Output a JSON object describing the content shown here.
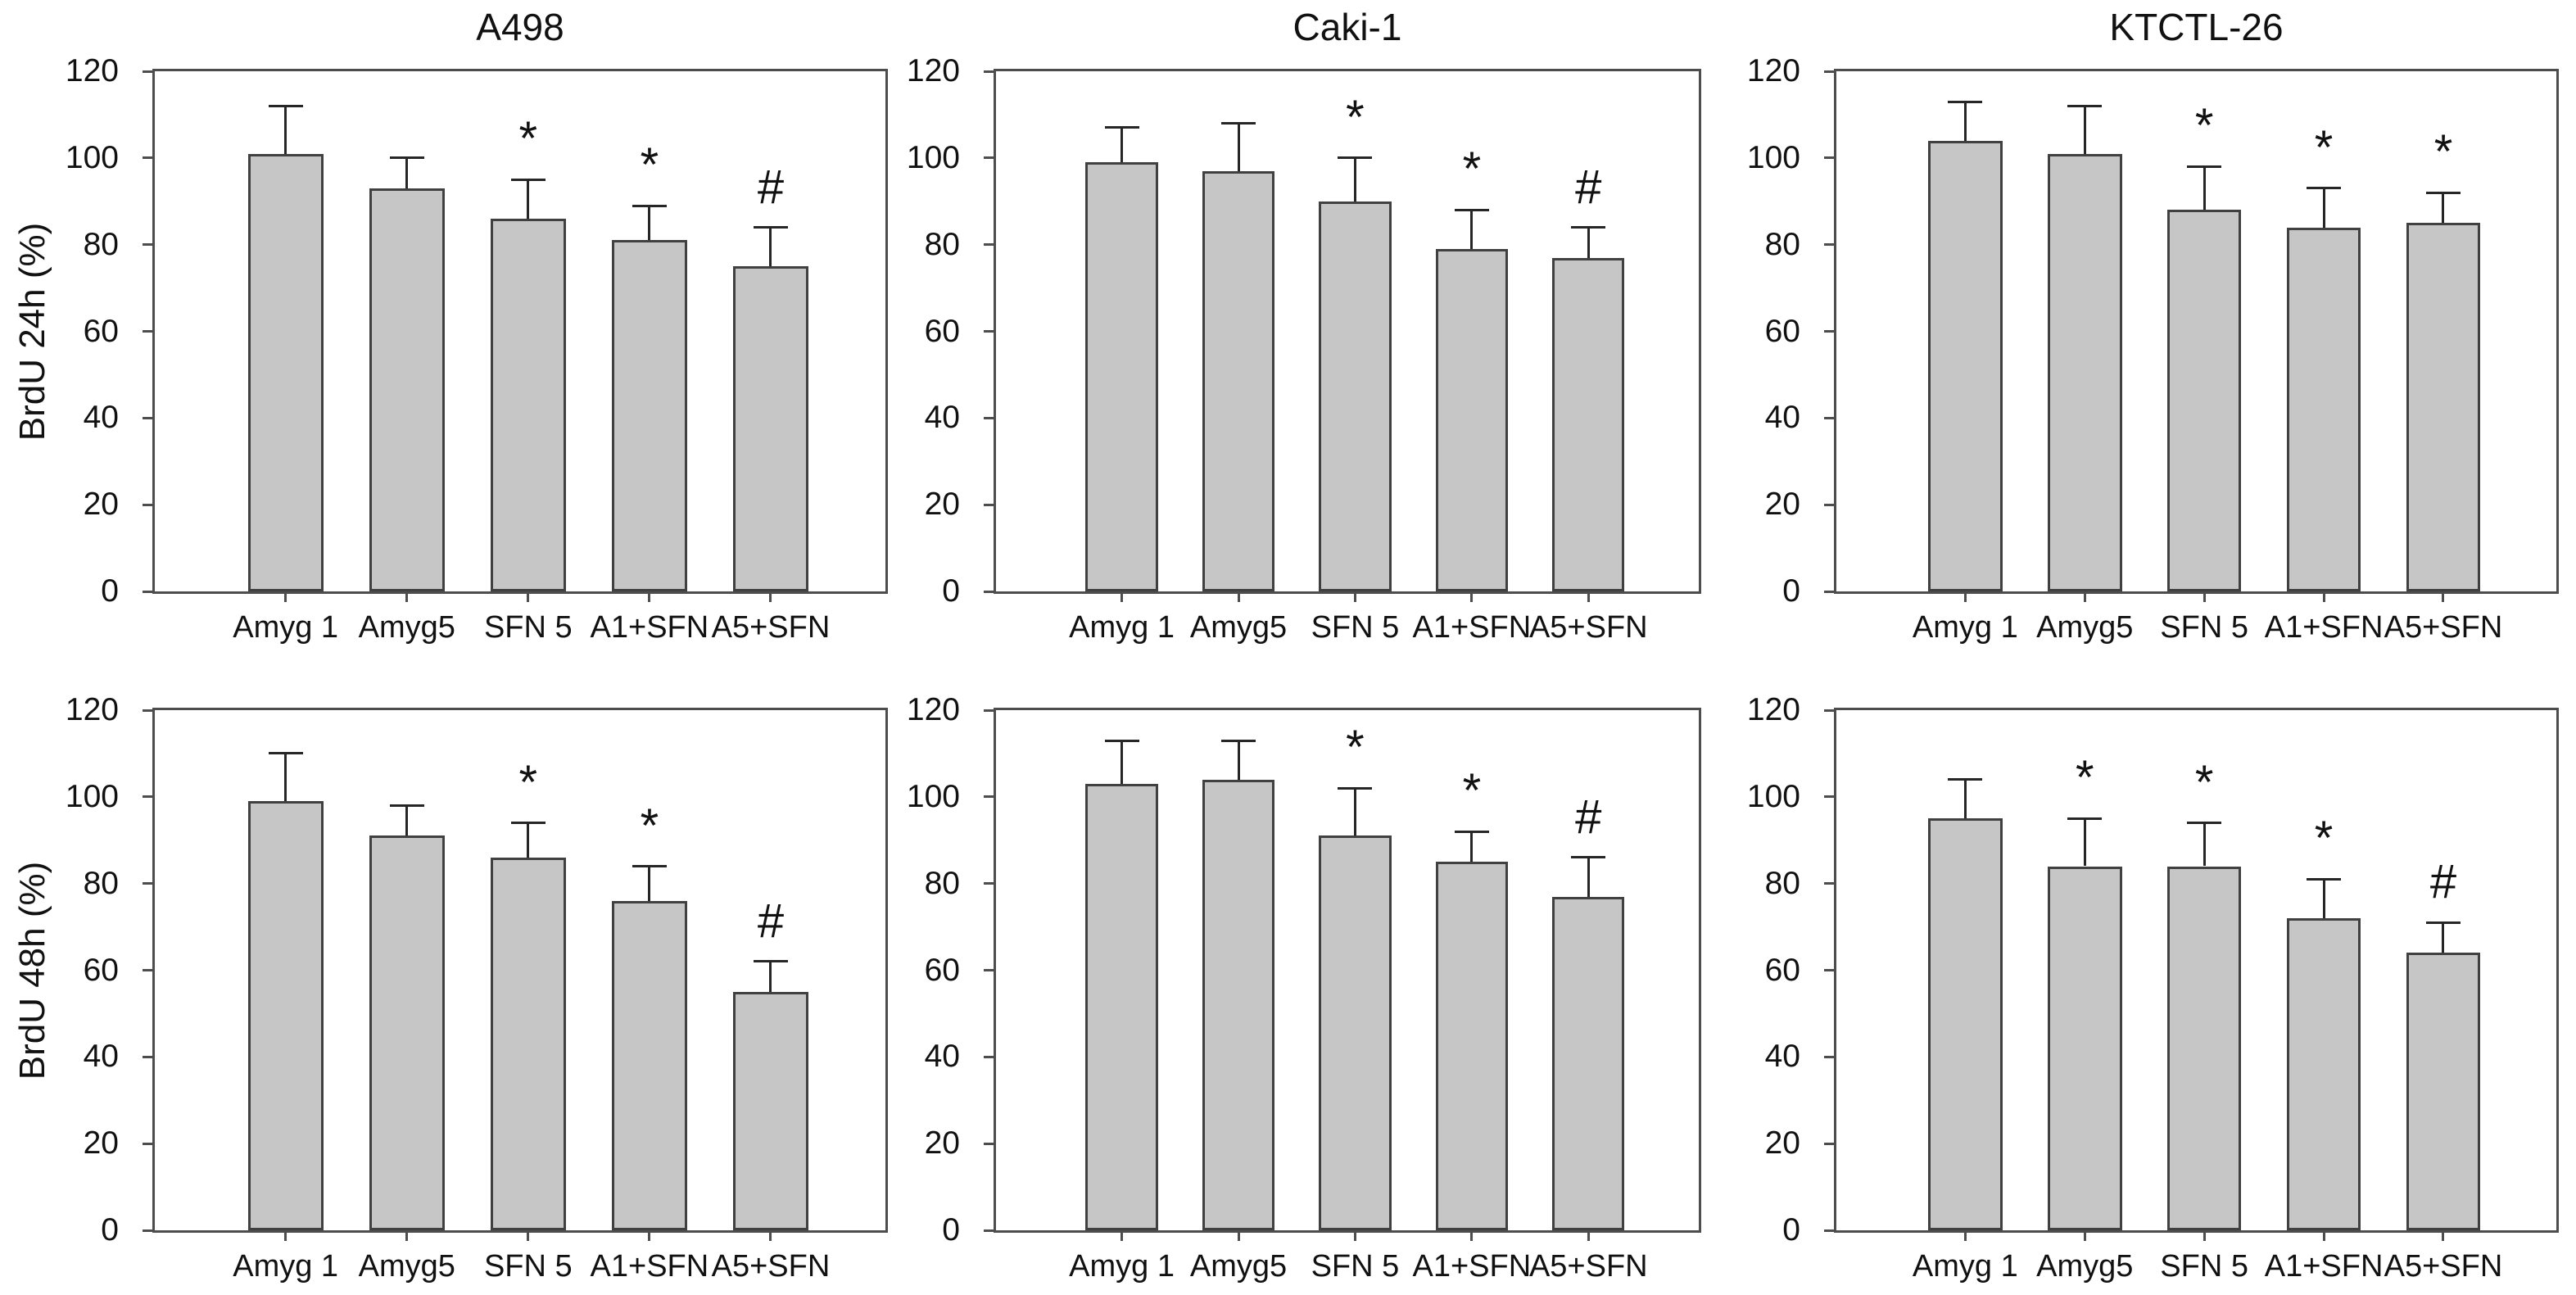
{
  "figure": {
    "column_titles": [
      "A498",
      "Caki-1",
      "KTCTL-26"
    ],
    "row_labels": [
      "BrdU 24h (%)",
      "BrdU 48h (%)"
    ],
    "significance_symbols": [
      "*",
      "#"
    ]
  },
  "colors": {
    "bar_fill": "#c6c6c6",
    "bar_border": "#404040",
    "axis": "#4d4d4d",
    "error_bar": "#262626",
    "text": "#111111",
    "background": "#ffffff"
  },
  "chart_data": [
    {
      "type": "bar",
      "title": "A498",
      "ylabel": "BrdU 24h (%)",
      "xlabel": "",
      "categories": [
        "Amyg 1",
        "Amyg5",
        "SFN 5",
        "A1+SFN",
        "A5+SFN"
      ],
      "values": [
        101,
        93,
        86,
        81,
        75
      ],
      "errors": [
        11,
        7,
        9,
        8,
        9
      ],
      "annotations": [
        "",
        "",
        "*",
        "*",
        "#"
      ],
      "ylim": [
        0,
        120
      ],
      "yticks": [
        0,
        20,
        40,
        60,
        80,
        100,
        120
      ],
      "grid": false,
      "legend": false
    },
    {
      "type": "bar",
      "title": "Caki-1",
      "ylabel": "BrdU 24h (%)",
      "xlabel": "",
      "categories": [
        "Amyg 1",
        "Amyg5",
        "SFN 5",
        "A1+SFN",
        "A5+SFN"
      ],
      "values": [
        99,
        97,
        90,
        79,
        77
      ],
      "errors": [
        8,
        11,
        10,
        9,
        7
      ],
      "annotations": [
        "",
        "",
        "*",
        "*",
        "#"
      ],
      "ylim": [
        0,
        120
      ],
      "yticks": [
        0,
        20,
        40,
        60,
        80,
        100,
        120
      ],
      "grid": false,
      "legend": false
    },
    {
      "type": "bar",
      "title": "KTCTL-26",
      "ylabel": "BrdU 24h (%)",
      "xlabel": "",
      "categories": [
        "Amyg 1",
        "Amyg5",
        "SFN 5",
        "A1+SFN",
        "A5+SFN"
      ],
      "values": [
        104,
        101,
        88,
        84,
        85
      ],
      "errors": [
        9,
        11,
        10,
        9,
        7
      ],
      "annotations": [
        "",
        "",
        "*",
        "*",
        "*"
      ],
      "ylim": [
        0,
        120
      ],
      "yticks": [
        0,
        20,
        40,
        60,
        80,
        100,
        120
      ],
      "grid": false,
      "legend": false
    },
    {
      "type": "bar",
      "title": "A498",
      "ylabel": "BrdU 48h (%)",
      "xlabel": "",
      "categories": [
        "Amyg 1",
        "Amyg5",
        "SFN 5",
        "A1+SFN",
        "A5+SFN"
      ],
      "values": [
        99,
        91,
        86,
        76,
        55
      ],
      "errors": [
        11,
        7,
        8,
        8,
        7
      ],
      "annotations": [
        "",
        "",
        "*",
        "*",
        "#"
      ],
      "ylim": [
        0,
        120
      ],
      "yticks": [
        0,
        20,
        40,
        60,
        80,
        100,
        120
      ],
      "grid": false,
      "legend": false
    },
    {
      "type": "bar",
      "title": "Caki-1",
      "ylabel": "BrdU 48h (%)",
      "xlabel": "",
      "categories": [
        "Amyg 1",
        "Amyg5",
        "SFN 5",
        "A1+SFN",
        "A5+SFN"
      ],
      "values": [
        103,
        104,
        91,
        85,
        77
      ],
      "errors": [
        10,
        9,
        11,
        7,
        9
      ],
      "annotations": [
        "",
        "",
        "*",
        "*",
        "#"
      ],
      "ylim": [
        0,
        120
      ],
      "yticks": [
        0,
        20,
        40,
        60,
        80,
        100,
        120
      ],
      "grid": false,
      "legend": false
    },
    {
      "type": "bar",
      "title": "KTCTL-26",
      "ylabel": "BrdU 48h (%)",
      "xlabel": "",
      "categories": [
        "Amyg 1",
        "Amyg5",
        "SFN 5",
        "A1+SFN",
        "A5+SFN"
      ],
      "values": [
        95,
        84,
        84,
        72,
        64
      ],
      "errors": [
        9,
        11,
        10,
        9,
        7
      ],
      "annotations": [
        "",
        "*",
        "*",
        "*",
        "#"
      ],
      "ylim": [
        0,
        120
      ],
      "yticks": [
        0,
        20,
        40,
        60,
        80,
        100,
        120
      ],
      "grid": false,
      "legend": false
    }
  ]
}
